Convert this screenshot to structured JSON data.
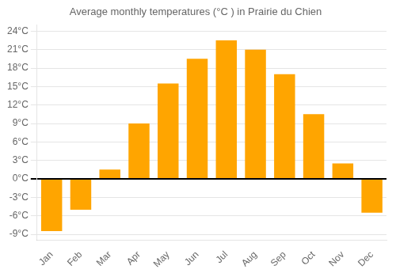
{
  "chart_data": {
    "type": "bar",
    "title": "Average monthly temperatures (°C ) in Prairie du Chien",
    "categories": [
      "Jan",
      "Feb",
      "Mar",
      "Apr",
      "May",
      "Jun",
      "Jul",
      "Aug",
      "Sep",
      "Oct",
      "Nov",
      "Dec"
    ],
    "values": [
      -8.5,
      -5.0,
      1.5,
      9.0,
      15.5,
      19.5,
      22.5,
      21.0,
      17.0,
      10.5,
      2.5,
      -5.5
    ],
    "color": "#FFA500",
    "ylim": [
      -10,
      25
    ],
    "yticks": [
      {
        "value": -9,
        "label": "-9°C"
      },
      {
        "value": -6,
        "label": "-6°C"
      },
      {
        "value": -3,
        "label": "-3°C"
      },
      {
        "value": 0,
        "label": "0°C"
      },
      {
        "value": 3,
        "label": "3°C"
      },
      {
        "value": 6,
        "label": "6°C"
      },
      {
        "value": 9,
        "label": "9°C"
      },
      {
        "value": 12,
        "label": "12°C"
      },
      {
        "value": 15,
        "label": "15°C"
      },
      {
        "value": 18,
        "label": "18°C"
      },
      {
        "value": 21,
        "label": "21°C"
      },
      {
        "value": 24,
        "label": "24°C"
      }
    ],
    "grid": true
  }
}
